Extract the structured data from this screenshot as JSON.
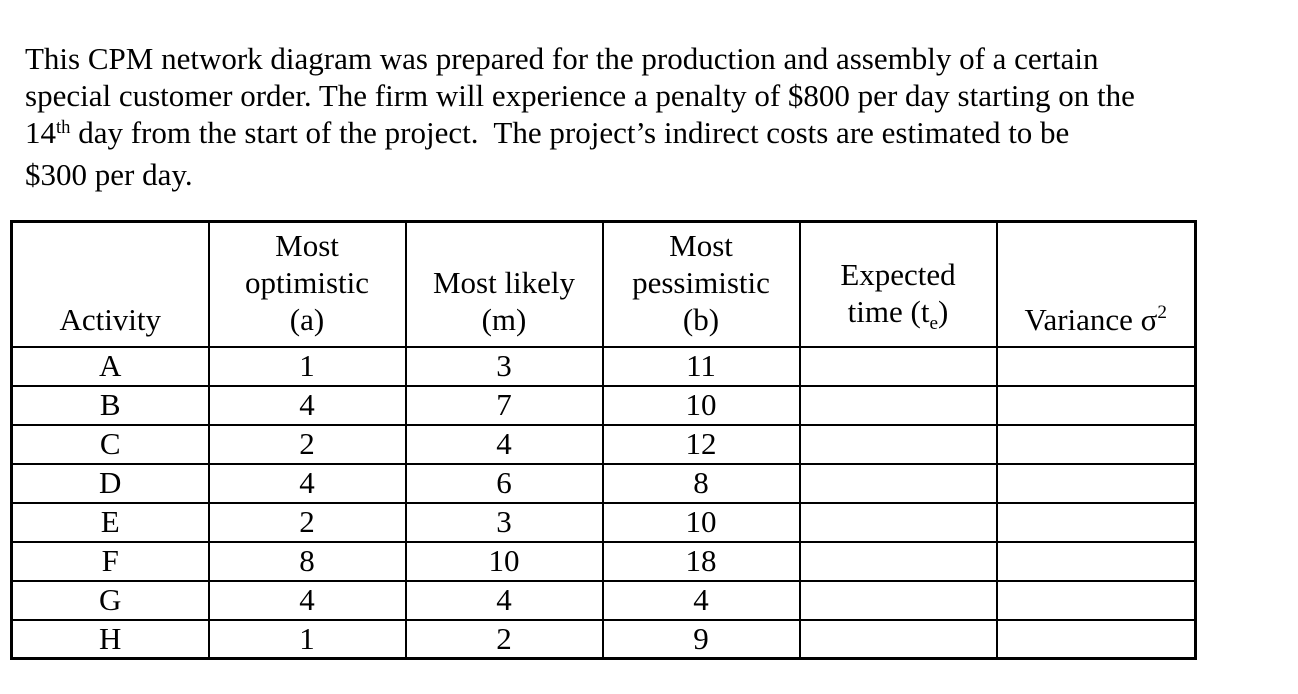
{
  "page": {
    "background": "#ffffff",
    "text_color": "#000000",
    "border_color": "#000000"
  },
  "problem": {
    "lines": [
      {
        "text": "This CPM network diagram was prepared for the production and assembly of a certain"
      },
      {
        "text": "special customer order. The firm will experience a penalty of $800 per day starting on the"
      },
      {
        "pre": "14",
        "sup": "th",
        "post": " day from the start of the project.  The project’s indirect costs are estimated to be"
      },
      {
        "text": "$300 per day."
      }
    ]
  },
  "table": {
    "headers": {
      "activity": "Activity",
      "optimistic_lines": [
        "Most",
        "optimistic",
        "(a)"
      ],
      "likely_lines": [
        "Most likely",
        "(m)"
      ],
      "pessimistic_lines": [
        "Most",
        "pessimistic",
        "(b)"
      ],
      "expected_line1": "Expected",
      "expected_line2_pre": "time (t",
      "expected_sub": "e",
      "expected_line2_post": ")",
      "variance_pre": "Variance σ",
      "variance_sup": "2"
    },
    "rows": [
      {
        "activity": "A",
        "a": "1",
        "m": "3",
        "b": "11",
        "te": "",
        "variance": ""
      },
      {
        "activity": "B",
        "a": "4",
        "m": "7",
        "b": "10",
        "te": "",
        "variance": ""
      },
      {
        "activity": "C",
        "a": "2",
        "m": "4",
        "b": "12",
        "te": "",
        "variance": ""
      },
      {
        "activity": "D",
        "a": "4",
        "m": "6",
        "b": "8",
        "te": "",
        "variance": ""
      },
      {
        "activity": "E",
        "a": "2",
        "m": "3",
        "b": "10",
        "te": "",
        "variance": ""
      },
      {
        "activity": "F",
        "a": "8",
        "m": "10",
        "b": "18",
        "te": "",
        "variance": ""
      },
      {
        "activity": "G",
        "a": "4",
        "m": "4",
        "b": "4",
        "te": "",
        "variance": ""
      },
      {
        "activity": "H",
        "a": "1",
        "m": "2",
        "b": "9",
        "te": "",
        "variance": ""
      }
    ]
  }
}
